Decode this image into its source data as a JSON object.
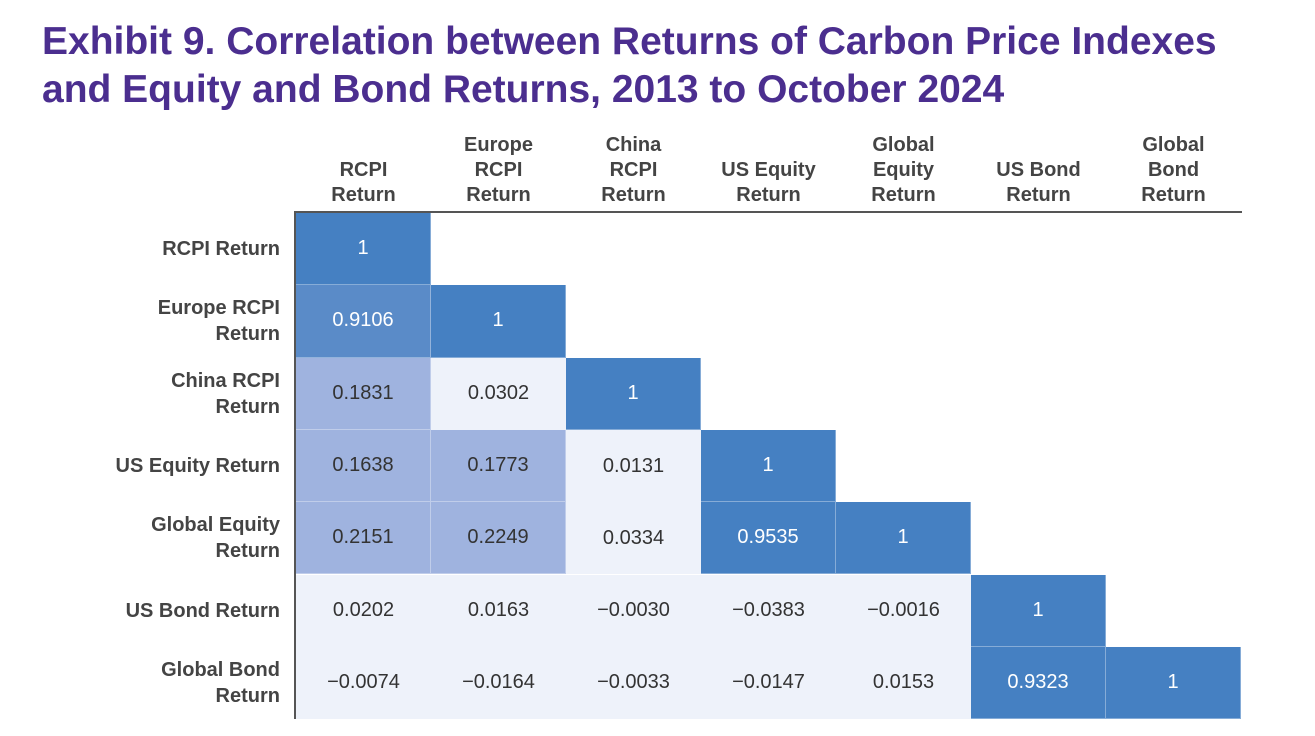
{
  "title": {
    "line1": "Exhibit 9. Correlation between Returns of Carbon Price Indexes",
    "line2": "and Equity and Bond Returns, 2013 to October 2024"
  },
  "chart_data": {
    "type": "heatmap",
    "title": "Exhibit 9. Correlation between Returns of Carbon Price Indexes and Equity and Bond Returns, 2013 to October 2024",
    "column_labels": [
      [
        "RCPI",
        "Return"
      ],
      [
        "Europe",
        "RCPI",
        "Return"
      ],
      [
        "China",
        "RCPI",
        "Return"
      ],
      [
        "US Equity",
        "Return"
      ],
      [
        "Global",
        "Equity",
        "Return"
      ],
      [
        "US Bond",
        "Return"
      ],
      [
        "Global",
        "Bond",
        "Return"
      ]
    ],
    "row_labels": [
      [
        "RCPI Return"
      ],
      [
        "Europe RCPI",
        "Return"
      ],
      [
        "China RCPI",
        "Return"
      ],
      [
        "US Equity Return"
      ],
      [
        "Global Equity",
        "Return"
      ],
      [
        "US Bond Return"
      ],
      [
        "Global Bond",
        "Return"
      ]
    ],
    "values": [
      [
        "1"
      ],
      [
        "0.9106",
        "1"
      ],
      [
        "0.1831",
        "0.0302",
        "1"
      ],
      [
        "0.1638",
        "0.1773",
        "0.0131",
        "1"
      ],
      [
        "0.2151",
        "0.2249",
        "0.0334",
        "0.9535",
        "1"
      ],
      [
        "0.0202",
        "0.0163",
        "−0.0030",
        "−0.0383",
        "−0.0016",
        "1"
      ],
      [
        "−0.0074",
        "−0.0164",
        "−0.0033",
        "−0.0147",
        "0.0153",
        "0.9323",
        "1"
      ]
    ],
    "colors": {
      "high": "#4580c2",
      "mid_high": "#5a8bc8",
      "low_mid": "#9fb3df",
      "near_zero": "#eef2fa",
      "light_text": "#ffffff",
      "dark_text": "#333333",
      "label_text": "#444444",
      "title": "#4b2e8f"
    }
  }
}
